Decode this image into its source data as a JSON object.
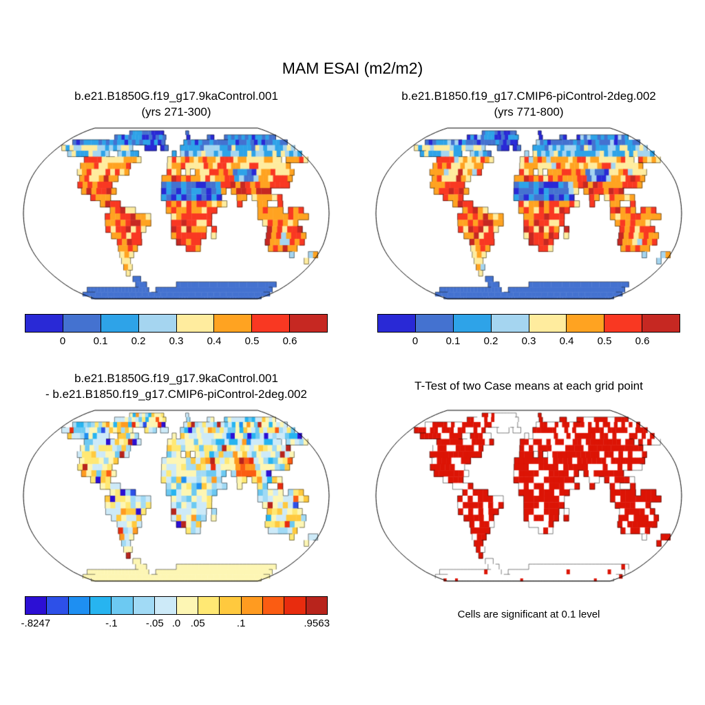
{
  "page": {
    "background": "#ffffff"
  },
  "chart_data": {
    "type": "heatmap",
    "projection": "robinson",
    "title": "MAM ESAI (m2/m2)",
    "panels": [
      {
        "id": "case1",
        "title_line1": "b.e21.B1850G.f19_g17.9kaControl.001",
        "title_line2": "(yrs 271-300)",
        "colorbar": {
          "colors": [
            "#2929d6",
            "#4472d0",
            "#2ea3e8",
            "#a5d5f0",
            "#ffec9e",
            "#ffa321",
            "#f93822",
            "#c62822"
          ],
          "tick_labels": [
            "0",
            "0.1",
            "0.2",
            "0.3",
            "0.4",
            "0.5",
            "0.6"
          ]
        }
      },
      {
        "id": "case2",
        "title_line1": "b.e21.B1850.f19_g17.CMIP6-piControl-2deg.002",
        "title_line2": "(yrs 771-800)",
        "colorbar": {
          "colors": [
            "#2929d6",
            "#4472d0",
            "#2ea3e8",
            "#a5d5f0",
            "#ffec9e",
            "#ffa321",
            "#f93822",
            "#c62822"
          ],
          "tick_labels": [
            "0",
            "0.1",
            "0.2",
            "0.3",
            "0.4",
            "0.5",
            "0.6"
          ]
        }
      },
      {
        "id": "difference",
        "title_line1": "b.e21.B1850G.f19_g17.9kaControl.001",
        "title_line2": "- b.e21.B1850.f19_g17.CMIP6-piControl-2deg.002",
        "colorbar": {
          "colors": [
            "#2c0fd4",
            "#2d50e8",
            "#1e8ff2",
            "#27b4f0",
            "#6cc9f2",
            "#a1daf5",
            "#cdeaf8",
            "#fdf6b4",
            "#ffe873",
            "#ffc93e",
            "#ff9b20",
            "#fb5c12",
            "#e82c0e",
            "#b8241c"
          ],
          "tick_labels": [
            "-.8247",
            "-.1",
            "-.05",
            ".0",
            ".05",
            ".1",
            ".9563"
          ],
          "tick_positions": [
            0.036,
            0.286,
            0.429,
            0.5,
            0.571,
            0.714,
            0.964
          ]
        }
      },
      {
        "id": "ttest",
        "title_line1": "T-Test of two Case means at each grid point",
        "caption": "Cells are significant at 0.1 level",
        "significant_color": "#dc1405"
      }
    ],
    "land_mask": [
      "000000000000000000000000000000000000000000000000000000000000",
      "000000000000000111111111110000000100000000000000000000000000",
      "000000000000111111111111111000000100000110001111111111111110",
      "001111111111111111111111111000001111111111111111111111111111",
      "011111111111111111100011101100011111111111111111111111111111",
      "000011111111110011111000000001011111111111111111111111111111",
      "000000000111111111111100000011111111111111111111111111011111",
      "000000000111111111110000000011111111111111111111111111100000",
      "000000000111111111110000000011101011111111111111111111100000",
      "000000000011111111000000000111111111111111111111111111000000",
      "000000000011111110000000000111111111111111111111111110000000",
      "000000000001111111000000000111111111111101111111100000000000",
      "000000000000011110000000000111111111111000110111111000000000",
      "000000000000000111100000000011111111111100100011001000000000",
      "000000000000000001111100000011111111110000000011111011100000",
      "000000000000000011111111100001111111100000000011111111110000",
      "000000000000000011111111100001111111100000000001111111000000",
      "000000000000000011111111000001111111010000000000111111100000",
      "000000000000000001111110000001111111010000000000111111110000",
      "000000000000000000111110000000111110000000000000111111110000",
      "000000000000000000111100000000001110000000000000011111100000",
      "000000000000000000111000000000000000000000000000000000100011",
      "000000000000000000110000000000000000000000000000000000000010",
      "000000000000000000110000000000000000000000000000000000000000",
      "000000000000000000100000000000000000000000000000000000000000",
      "000000000000000000011000000000000000000000000000000000000000",
      "000000000000000000011100000000111111111111111111111111111000",
      "000011111111111111111100111111111111111111111111111111111100",
      "111111111111111111111111111111111111111111111111111111111111",
      "111111111111111111111111111111111111111111111111111111111111"
    ]
  }
}
